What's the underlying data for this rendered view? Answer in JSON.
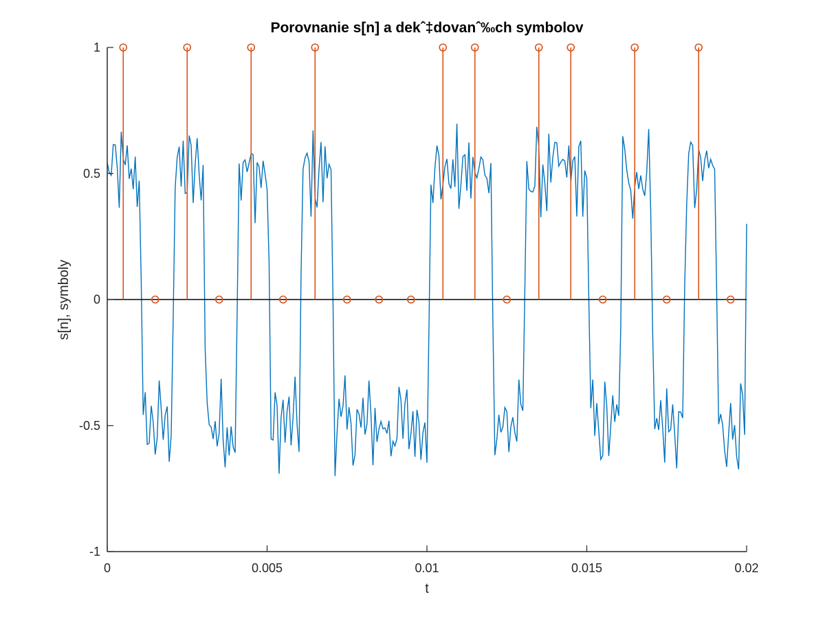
{
  "chart_data": {
    "type": "line",
    "title": "Porovnanie s[n] a dekˆ‡dovanˆ‰ch symbolov",
    "xlabel": "t",
    "ylabel": "s[n], symboly",
    "xlim": [
      0,
      0.02
    ],
    "ylim": [
      -1,
      1
    ],
    "x_ticks": [
      0,
      0.005,
      0.01,
      0.015,
      0.02
    ],
    "x_tick_labels": [
      "0",
      "0.005",
      "0.01",
      "0.015",
      "0.02"
    ],
    "y_ticks": [
      -1,
      -0.5,
      0,
      0.5,
      1
    ],
    "y_tick_labels": [
      "-1",
      "-0.5",
      "0",
      "0.5",
      "1"
    ],
    "grid": false,
    "colors": {
      "signal": "#0072BD",
      "symbols": "#D95319",
      "zero_line": "#000000"
    },
    "signal": {
      "sample_rate_hz": 16000,
      "symbol_duration_s": 0.001,
      "symbol_levels": [
        0.5,
        -0.5,
        0.5,
        -0.5,
        0.5,
        -0.5,
        0.5,
        -0.5,
        -0.5,
        -0.5,
        0.5,
        0.5,
        -0.5,
        0.5,
        0.5,
        -0.5,
        0.5,
        -0.5,
        0.5,
        -0.5
      ],
      "noise_amplitude": 0.14,
      "end_value": 0.3
    },
    "symbols": {
      "t": [
        0.0005,
        0.0015,
        0.0025,
        0.0035,
        0.0045,
        0.0055,
        0.0065,
        0.0075,
        0.0085,
        0.0095,
        0.0105,
        0.0115,
        0.0125,
        0.0135,
        0.0145,
        0.0155,
        0.0165,
        0.0175,
        0.0185,
        0.0195
      ],
      "values": [
        1,
        0,
        1,
        0,
        1,
        0,
        1,
        0,
        0,
        0,
        1,
        1,
        0,
        1,
        1,
        0,
        1,
        0,
        1,
        0
      ]
    }
  }
}
